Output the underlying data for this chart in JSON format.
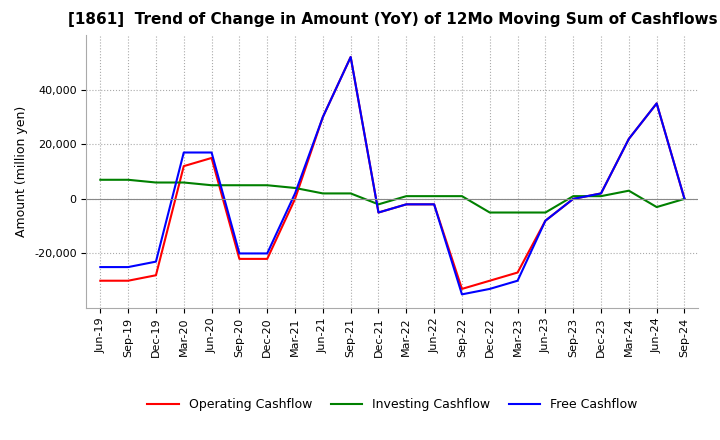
{
  "title": "[1861]  Trend of Change in Amount (YoY) of 12Mo Moving Sum of Cashflows",
  "ylabel": "Amount (million yen)",
  "x_labels": [
    "Jun-19",
    "Sep-19",
    "Dec-19",
    "Mar-20",
    "Jun-20",
    "Sep-20",
    "Dec-20",
    "Mar-21",
    "Jun-21",
    "Sep-21",
    "Dec-21",
    "Mar-22",
    "Jun-22",
    "Sep-22",
    "Dec-22",
    "Mar-23",
    "Jun-23",
    "Sep-23",
    "Dec-23",
    "Mar-24",
    "Jun-24",
    "Sep-24"
  ],
  "operating": [
    -30000,
    -30000,
    -28000,
    12000,
    15000,
    -22000,
    -22000,
    0,
    30000,
    52000,
    -5000,
    -2000,
    -2000,
    -33000,
    -30000,
    -27000,
    -8000,
    0,
    2000,
    22000,
    35000,
    0
  ],
  "investing": [
    7000,
    7000,
    6000,
    6000,
    5000,
    5000,
    5000,
    4000,
    2000,
    2000,
    -2000,
    1000,
    1000,
    1000,
    -5000,
    -5000,
    -5000,
    1000,
    1000,
    3000,
    -3000,
    0
  ],
  "free": [
    -25000,
    -25000,
    -23000,
    17000,
    17000,
    -20000,
    -20000,
    2000,
    30000,
    52000,
    -5000,
    -2000,
    -2000,
    -35000,
    -33000,
    -30000,
    -8000,
    0,
    2000,
    22000,
    35000,
    0
  ],
  "operating_color": "#ff0000",
  "investing_color": "#008000",
  "free_color": "#0000ff",
  "ylim": [
    -40000,
    60000
  ],
  "yticks": [
    -20000,
    0,
    20000,
    40000
  ],
  "background_color": "#ffffff",
  "title_fontsize": 11,
  "axis_fontsize": 9,
  "tick_fontsize": 8,
  "legend_fontsize": 9
}
